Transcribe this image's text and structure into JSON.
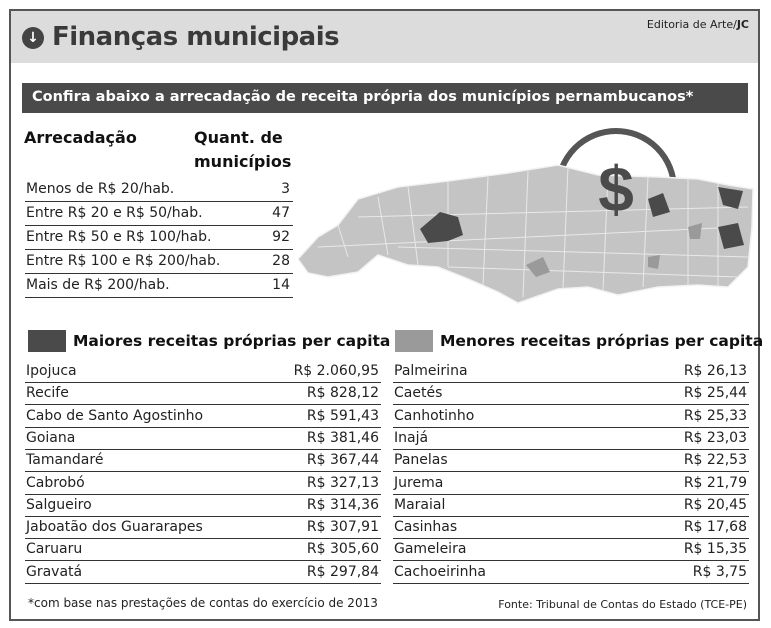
{
  "header": {
    "title": "Finanças municipais",
    "credit_prefix": "Editoria de Arte/",
    "credit_bold": "JC",
    "icon": "down-arrow-circle-icon"
  },
  "banner": "Confira abaixo a arrecadação de receita própria dos municípios pernambucanos*",
  "arrecadacao": {
    "col1": "Arrecadação",
    "col2_line1": "Quant. de",
    "col2_line2": "municípios",
    "rows": [
      {
        "label": "Menos de R$ 20/hab.",
        "value": "3"
      },
      {
        "label": "Entre R$ 20 e R$ 50/hab.",
        "value": "47"
      },
      {
        "label": "Entre R$ 50 e R$ 100/hab.",
        "value": "92"
      },
      {
        "label": "Entre R$ 100 e R$ 200/hab.",
        "value": "28"
      },
      {
        "label": "Mais de R$ 200/hab.",
        "value": "14"
      }
    ]
  },
  "map": {
    "icon": "dollar-sign-icon",
    "symbol": "$"
  },
  "maiores": {
    "title": "Maiores receitas próprias per capita",
    "color": "#4a4a4a",
    "rows": [
      {
        "name": "Ipojuca",
        "value": "R$ 2.060,95"
      },
      {
        "name": "Recife",
        "value": "R$ 828,12"
      },
      {
        "name": "Cabo de Santo Agostinho",
        "value": "R$ 591,43"
      },
      {
        "name": "Goiana",
        "value": "R$ 381,46"
      },
      {
        "name": "Tamandaré",
        "value": "R$ 367,44"
      },
      {
        "name": "Cabrobó",
        "value": "R$ 327,13"
      },
      {
        "name": "Salgueiro",
        "value": "R$ 314,36"
      },
      {
        "name": "Jaboatão dos Guararapes",
        "value": "R$ 307,91"
      },
      {
        "name": "Caruaru",
        "value": "R$ 305,60"
      },
      {
        "name": "Gravatá",
        "value": "R$ 297,84"
      }
    ]
  },
  "menores": {
    "title": "Menores receitas próprias per capita",
    "color": "#9a9a9a",
    "rows": [
      {
        "name": "Palmeirina",
        "value": "R$ 26,13"
      },
      {
        "name": "Caetés",
        "value": "R$ 25,44"
      },
      {
        "name": "Canhotinho",
        "value": "R$ 25,33"
      },
      {
        "name": "Inajá",
        "value": "R$ 23,03"
      },
      {
        "name": "Panelas",
        "value": "R$ 22,53"
      },
      {
        "name": "Jurema",
        "value": "R$ 21,79"
      },
      {
        "name": "Maraial",
        "value": "R$ 20,45"
      },
      {
        "name": "Casinhas",
        "value": "R$ 17,68"
      },
      {
        "name": "Gameleira",
        "value": "R$ 15,35"
      },
      {
        "name": "Cachoeirinha",
        "value": "R$ 3,75"
      }
    ]
  },
  "footer": {
    "note": "*com base nas prestações de contas do exercício de 2013",
    "source": "Fonte: Tribunal de Contas do Estado (TCE-PE)"
  }
}
